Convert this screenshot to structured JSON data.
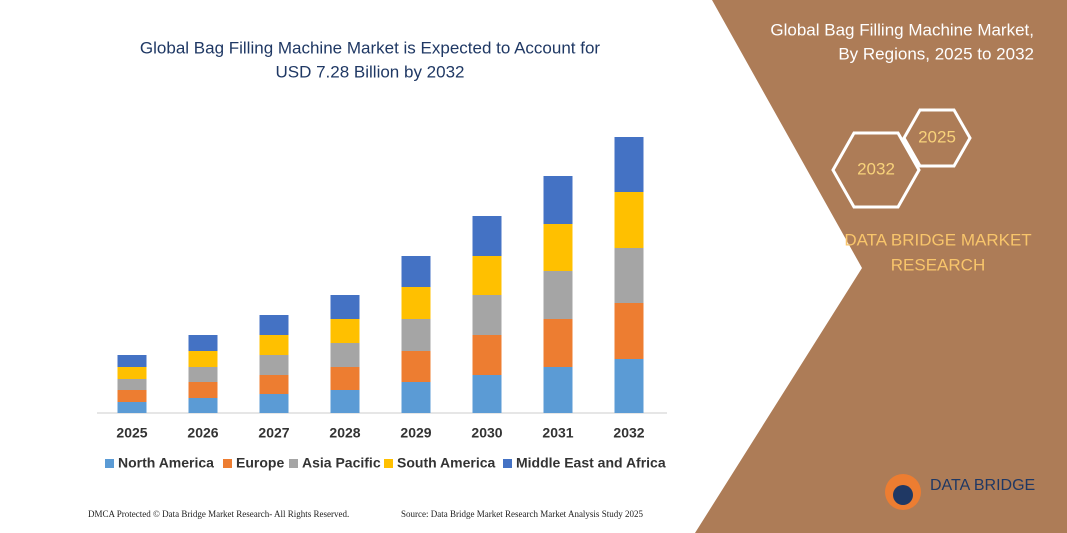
{
  "chart_data": {
    "type": "bar",
    "stacked": true,
    "title": [
      "Global Bag Filling Machine Market is Expected to Account for",
      "USD 7.28 Billion by 2032"
    ],
    "categories": [
      "2025",
      "2026",
      "2027",
      "2028",
      "2029",
      "2030",
      "2031",
      "2032"
    ],
    "series": [
      {
        "name": "North America",
        "color": "#5b9bd5",
        "values": [
          11,
          15,
          19,
          23,
          31,
          38,
          46,
          54
        ]
      },
      {
        "name": "Europe",
        "color": "#ed7d31",
        "values": [
          12,
          16,
          19,
          23,
          31,
          40,
          48,
          56
        ]
      },
      {
        "name": "Asia Pacific",
        "color": "#a5a5a5",
        "values": [
          11,
          15,
          20,
          24,
          32,
          40,
          48,
          55
        ]
      },
      {
        "name": "South America",
        "color": "#ffc000",
        "values": [
          12,
          16,
          20,
          24,
          32,
          39,
          47,
          56
        ]
      },
      {
        "name": "Middle East and Africa",
        "color": "#4472c4",
        "values": [
          12,
          16,
          20,
          24,
          31,
          40,
          48,
          55
        ]
      }
    ]
  },
  "panel": {
    "title": [
      "Global Bag Filling Machine Market,",
      "By Regions, 2025 to 2032"
    ],
    "hex_labels": [
      "2025",
      "2032"
    ],
    "brand": [
      "DATA BRIDGE MARKET",
      "RESEARCH"
    ]
  },
  "logo": {
    "text": "DATA BRIDGE"
  },
  "footer": {
    "left": "DMCA Protected © Data Bridge Market Research- All Rights Reserved.",
    "right": "Source: Data Bridge Market Research Market Analysis Study 2025"
  }
}
